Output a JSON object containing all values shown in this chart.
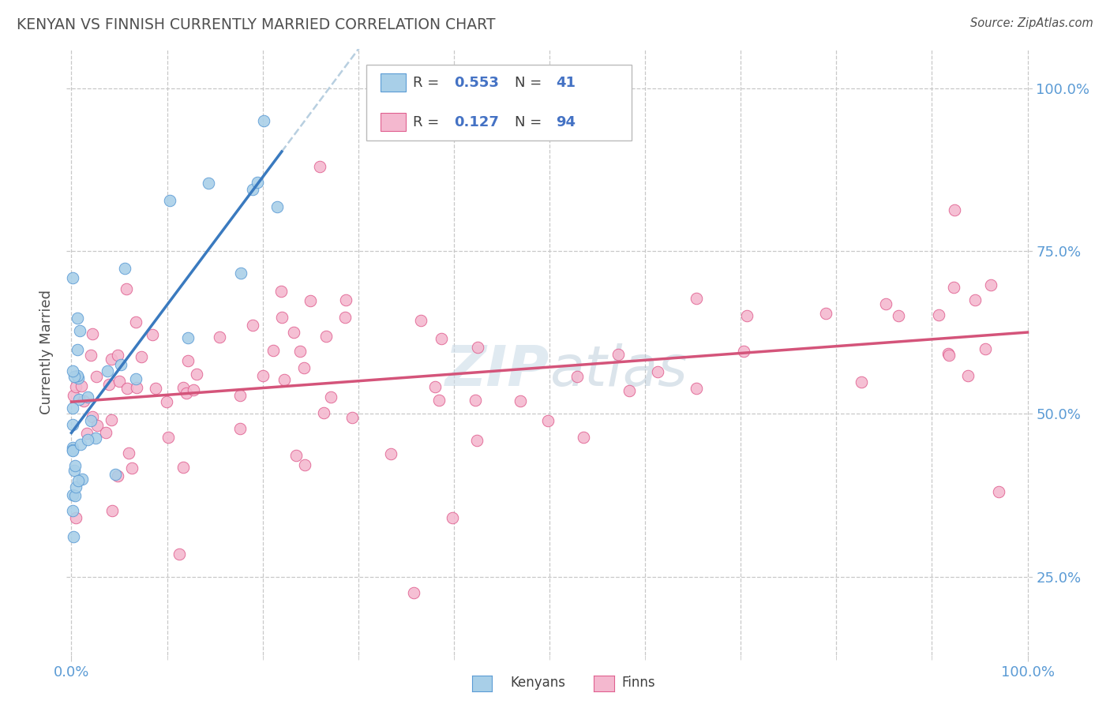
{
  "title": "KENYAN VS FINNISH CURRENTLY MARRIED CORRELATION CHART",
  "source": "Source: ZipAtlas.com",
  "ylabel": "Currently Married",
  "y_ticks_right": [
    "25.0%",
    "50.0%",
    "75.0%",
    "100.0%"
  ],
  "y_ticks_vals": [
    0.25,
    0.5,
    0.75,
    1.0
  ],
  "x_tick_left": "0.0%",
  "x_tick_right": "100.0%",
  "legend_kenyan_r": "0.553",
  "legend_kenyan_n": "41",
  "legend_finn_r": "0.127",
  "legend_finn_n": "94",
  "kenyan_color": "#a8cfe8",
  "kenyan_edge": "#5b9bd5",
  "finn_color": "#f4b8cf",
  "finn_edge": "#e06090",
  "trend_kenyan_solid": "#3a7abf",
  "trend_kenyan_dashed": "#b8cfe0",
  "trend_finn": "#d4547a",
  "background": "#ffffff",
  "grid_color": "#c8c8c8",
  "title_color": "#505050",
  "axis_color": "#5b9bd5",
  "text_dark": "#404040",
  "r_val_color": "#4472c4",
  "watermark_color": "#ccdce8",
  "ylim_min": 0.13,
  "ylim_max": 1.06,
  "xlim_min": -0.005,
  "xlim_max": 1.005
}
